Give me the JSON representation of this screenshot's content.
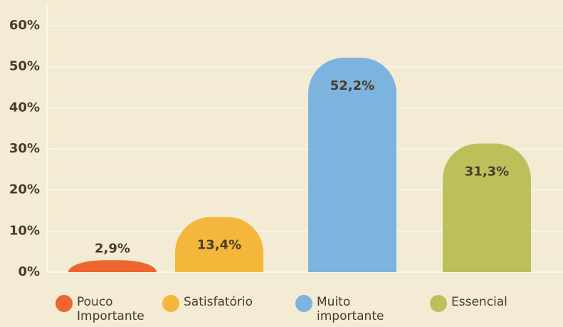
{
  "chart_data": {
    "type": "bar",
    "categories": [
      "Pouco Importante",
      "Satisfatório",
      "Muito importante",
      "Essencial"
    ],
    "values": [
      2.9,
      13.4,
      52.2,
      31.3
    ],
    "value_labels": [
      "2,9%",
      "13,4%",
      "52,2%",
      "31,3%"
    ],
    "colors": [
      "#ef6530",
      "#f5b73b",
      "#7db4df",
      "#bcc05b"
    ],
    "ylim": [
      0,
      60
    ],
    "yticks": [
      {
        "value": 0,
        "label": "0%"
      },
      {
        "value": 10,
        "label": "10%"
      },
      {
        "value": 20,
        "label": "20%"
      },
      {
        "value": 30,
        "label": "30%"
      },
      {
        "value": 40,
        "label": "40%"
      },
      {
        "value": 50,
        "label": "50%"
      },
      {
        "value": 60,
        "label": "60%"
      }
    ],
    "grid": true
  }
}
